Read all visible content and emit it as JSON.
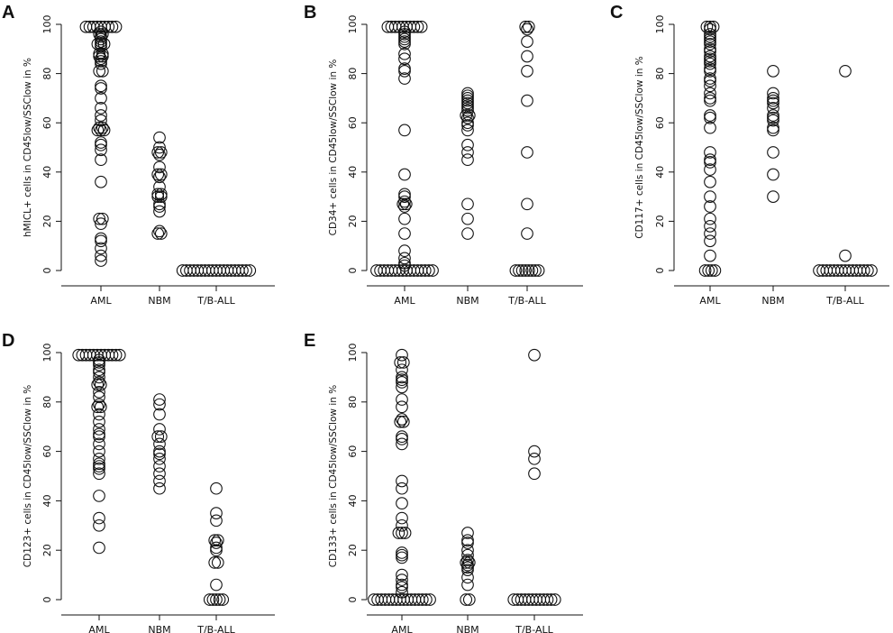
{
  "chart_data": [
    {
      "panel": "A",
      "type": "scatter",
      "ylabel": "hMICL+ cells in CD45low/SSClow in %",
      "categories": [
        "AML",
        "NBM",
        "T/B-ALL"
      ],
      "yticks": [
        0,
        20,
        40,
        60,
        80,
        100
      ],
      "ylim": [
        0,
        100
      ],
      "series": [
        {
          "category": "AML",
          "values": [
            99,
            99,
            99,
            99,
            99,
            99,
            99,
            99,
            99,
            97,
            96,
            96,
            95,
            94,
            93,
            92,
            92,
            92,
            91,
            88,
            88,
            87,
            87,
            86,
            85,
            84,
            81,
            81,
            75,
            74,
            70,
            66,
            63,
            61,
            58,
            58,
            57,
            57,
            57,
            52,
            51,
            49,
            45,
            36,
            21,
            21,
            19,
            13,
            12,
            9,
            6,
            4
          ]
        },
        {
          "category": "NBM",
          "values": [
            54,
            50,
            48,
            48,
            47,
            42,
            39,
            39,
            38,
            34,
            31,
            31,
            30,
            30,
            27,
            26,
            24,
            16,
            15,
            15
          ]
        },
        {
          "category": "T/B-ALL",
          "values": [
            0,
            0,
            0,
            0,
            0,
            0,
            0,
            0,
            0,
            0,
            0,
            0,
            0,
            0,
            0,
            0,
            0,
            0,
            0
          ]
        }
      ]
    },
    {
      "panel": "B",
      "type": "scatter",
      "ylabel": "CD34+ cells in CD45low/SSClow in %",
      "categories": [
        "AML",
        "NBM",
        "T/B-ALL"
      ],
      "yticks": [
        0,
        20,
        40,
        60,
        80,
        100
      ],
      "ylim": [
        0,
        100
      ],
      "series": [
        {
          "category": "AML",
          "values": [
            99,
            99,
            99,
            99,
            99,
            99,
            99,
            99,
            99,
            99,
            97,
            96,
            95,
            94,
            93,
            92,
            88,
            86,
            82,
            81,
            78,
            57,
            39,
            31,
            30,
            28,
            27,
            27,
            26,
            21,
            15,
            8,
            5,
            3,
            2,
            0,
            0,
            0,
            0,
            0,
            0,
            0,
            0,
            0,
            0,
            0,
            0,
            0,
            0,
            0,
            0
          ]
        },
        {
          "category": "NBM",
          "values": [
            72,
            71,
            70,
            69,
            68,
            67,
            66,
            65,
            63,
            63,
            62,
            60,
            59,
            57,
            51,
            48,
            45,
            27,
            21,
            15
          ]
        },
        {
          "category": "T/B-ALL",
          "values": [
            99,
            99,
            98,
            93,
            87,
            81,
            69,
            48,
            27,
            15,
            0,
            0,
            0,
            0,
            0,
            0,
            0,
            0
          ]
        }
      ]
    },
    {
      "panel": "C",
      "type": "scatter",
      "ylabel": "CD117+ cells in CD45low/SSClow in %",
      "categories": [
        "AML",
        "NBM",
        "T/B-ALL"
      ],
      "yticks": [
        0,
        20,
        40,
        60,
        80,
        100
      ],
      "ylim": [
        0,
        100
      ],
      "series": [
        {
          "category": "AML",
          "values": [
            99,
            99,
            99,
            98,
            96,
            95,
            94,
            93,
            92,
            90,
            89,
            87,
            86,
            85,
            84,
            82,
            81,
            78,
            77,
            75,
            72,
            70,
            69,
            63,
            62,
            58,
            48,
            45,
            44,
            41,
            36,
            30,
            26,
            21,
            18,
            15,
            12,
            6,
            0,
            0,
            0,
            0
          ]
        },
        {
          "category": "NBM",
          "values": [
            81,
            72,
            70,
            69,
            68,
            66,
            63,
            62,
            61,
            58,
            57,
            48,
            39,
            30
          ]
        },
        {
          "category": "T/B-ALL",
          "values": [
            81,
            6,
            0,
            0,
            0,
            0,
            0,
            0,
            0,
            0,
            0,
            0,
            0,
            0,
            0,
            0,
            0
          ]
        }
      ]
    },
    {
      "panel": "D",
      "type": "scatter",
      "ylabel": "CD123+ cells in CD45low/SSClow in %",
      "categories": [
        "AML",
        "NBM",
        "T/B-ALL"
      ],
      "yticks": [
        0,
        20,
        40,
        60,
        80,
        100
      ],
      "ylim": [
        0,
        100
      ],
      "series": [
        {
          "category": "AML",
          "values": [
            99,
            99,
            99,
            99,
            99,
            99,
            99,
            99,
            99,
            99,
            99,
            99,
            97,
            96,
            95,
            93,
            92,
            90,
            88,
            87,
            87,
            84,
            82,
            79,
            78,
            78,
            75,
            72,
            69,
            67,
            66,
            63,
            60,
            57,
            55,
            54,
            53,
            51,
            42,
            33,
            30,
            21
          ]
        },
        {
          "category": "NBM",
          "values": [
            81,
            79,
            75,
            69,
            66,
            66,
            63,
            60,
            59,
            57,
            54,
            51,
            48,
            45
          ]
        },
        {
          "category": "T/B-ALL",
          "values": [
            45,
            35,
            32,
            24,
            24,
            23,
            21,
            20,
            15,
            15,
            6,
            0,
            0,
            0,
            0,
            0
          ]
        }
      ]
    },
    {
      "panel": "E",
      "type": "scatter",
      "ylabel": "CD133+ cells in CD45low/SSClow in %",
      "categories": [
        "AML",
        "NBM",
        "T/B-ALL"
      ],
      "yticks": [
        0,
        20,
        40,
        60,
        80,
        100
      ],
      "ylim": [
        0,
        100
      ],
      "series": [
        {
          "category": "AML",
          "values": [
            99,
            96,
            96,
            93,
            90,
            89,
            88,
            86,
            81,
            78,
            73,
            72,
            72,
            66,
            65,
            63,
            48,
            45,
            39,
            33,
            30,
            27,
            27,
            27,
            19,
            18,
            17,
            10,
            8,
            6,
            5,
            3,
            0,
            0,
            0,
            0,
            0,
            0,
            0,
            0,
            0,
            0,
            0,
            0,
            0,
            0,
            0,
            0
          ]
        },
        {
          "category": "NBM",
          "values": [
            27,
            24,
            23,
            20,
            18,
            16,
            15,
            15,
            14,
            13,
            12,
            9,
            6,
            0,
            0
          ]
        },
        {
          "category": "T/B-ALL",
          "values": [
            99,
            60,
            57,
            51,
            0,
            0,
            0,
            0,
            0,
            0,
            0,
            0,
            0,
            0,
            0,
            0
          ]
        }
      ]
    }
  ]
}
